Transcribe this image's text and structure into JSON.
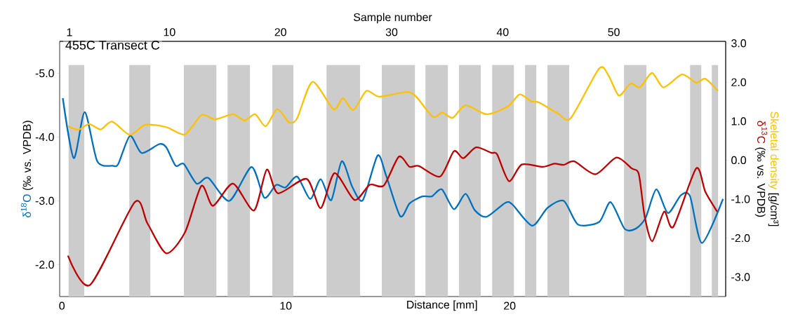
{
  "chart_data": {
    "type": "line",
    "title": "455C Transect C",
    "xlabel": "Distance [mm]",
    "x2label": "Sample number",
    "ylabel": "(‰ vs. VPDB)",
    "y2label": "(‰ vs. VPDB)",
    "annotations": [
      "[g/cm³]"
    ],
    "xlim": [
      -0.1,
      29.65
    ],
    "xticks": [
      0,
      10,
      20
    ],
    "x2lim": [
      0.12,
      60.07
    ],
    "x2ticks": [
      1,
      10,
      20,
      30,
      40,
      50
    ],
    "ylim": [
      -1.5,
      -5.5
    ],
    "yticks": [
      {
        "value": -5,
        "label": "-5.0"
      },
      {
        "value": -4,
        "label": "-4.0"
      },
      {
        "value": -3,
        "label": "-3.0"
      },
      {
        "value": -2,
        "label": "-2.0"
      }
    ],
    "y2lim": [
      -3.5,
      3.05
    ],
    "y2ticks": [
      {
        "value": 3,
        "label": "3.0"
      },
      {
        "value": 2,
        "label": "2.0"
      },
      {
        "value": 1,
        "label": "1.0"
      },
      {
        "value": 0,
        "label": "0.0"
      },
      {
        "value": -1,
        "label": "-1.0"
      },
      {
        "value": -2,
        "label": "-2.0"
      },
      {
        "value": -3,
        "label": "-3.0"
      }
    ],
    "bands": [
      {
        "axis": "x",
        "from": 0.3,
        "to": 1.0,
        "color": "#cccccc"
      },
      {
        "axis": "x",
        "from": 3.01,
        "to": 3.95,
        "color": "#cccccc"
      },
      {
        "axis": "x",
        "from": 5.45,
        "to": 6.9,
        "color": "#cccccc"
      },
      {
        "axis": "x",
        "from": 7.4,
        "to": 8.4,
        "color": "#cccccc"
      },
      {
        "axis": "x",
        "from": 9.4,
        "to": 10.34,
        "color": "#cccccc"
      },
      {
        "axis": "x",
        "from": 11.82,
        "to": 13.32,
        "color": "#cccccc"
      },
      {
        "axis": "x",
        "from": 14.29,
        "to": 15.77,
        "color": "#cccccc"
      },
      {
        "axis": "x",
        "from": 16.24,
        "to": 17.24,
        "color": "#cccccc"
      },
      {
        "axis": "x",
        "from": 17.74,
        "to": 18.71,
        "color": "#cccccc"
      },
      {
        "axis": "x",
        "from": 19.22,
        "to": 20.19,
        "color": "#cccccc"
      },
      {
        "axis": "x",
        "from": 20.69,
        "to": 21.19,
        "color": "#cccccc"
      },
      {
        "axis": "x",
        "from": 21.69,
        "to": 22.66,
        "color": "#cccccc"
      },
      {
        "axis": "x",
        "from": 25.11,
        "to": 26.11,
        "color": "#cccccc"
      },
      {
        "axis": "x",
        "from": 28.06,
        "to": 28.56,
        "color": "#cccccc"
      },
      {
        "axis": "x",
        "from": 29.03,
        "to": 29.31,
        "color": "#cccccc"
      }
    ],
    "series": [
      {
        "name": "δ$^{18}$O",
        "color": "#0070c0",
        "x": [
          0.04,
          0.53,
          1.02,
          1.58,
          2.26,
          2.52,
          3.04,
          3.56,
          4.35,
          4.66,
          5.08,
          5.44,
          6.02,
          6.54,
          7.48,
          8.47,
          9.04,
          9.57,
          9.99,
          10.51,
          11.09,
          11.56,
          12.03,
          12.5,
          12.97,
          13.44,
          14.1,
          14.48,
          15.11,
          15.53,
          16.1,
          16.52,
          16.97,
          17.51,
          18.03,
          18.45,
          18.97,
          19.81,
          20.13,
          21.01,
          21.69,
          22.42,
          23.05,
          24.0,
          24.51,
          25.14,
          25.66,
          26.08,
          26.55,
          27.07,
          27.65,
          28.06,
          28.59,
          29.53
        ],
        "values": [
          -4.61,
          -3.67,
          -4.39,
          -3.62,
          -3.55,
          -3.58,
          -4.02,
          -3.75,
          -3.89,
          -3.84,
          -3.55,
          -3.58,
          -3.27,
          -3.36,
          -3.0,
          -3.53,
          -3.05,
          -3.25,
          -3.21,
          -3.38,
          -3.03,
          -3.34,
          -3.01,
          -3.62,
          -3.22,
          -3.01,
          -3.71,
          -3.4,
          -2.76,
          -2.96,
          -3.07,
          -3.07,
          -3.18,
          -2.87,
          -3.11,
          -2.85,
          -2.75,
          -2.97,
          -2.94,
          -2.61,
          -2.89,
          -3.0,
          -2.63,
          -2.67,
          -2.98,
          -2.56,
          -2.57,
          -2.74,
          -3.18,
          -2.81,
          -3.09,
          -3.07,
          -2.34,
          -3.03
        ]
      },
      {
        "name": "δ$^{13}$C",
        "color": "#c00000",
        "axis": "y2",
        "x": [
          0.27,
          1.26,
          3.25,
          3.82,
          4.66,
          5.5,
          6.23,
          6.75,
          7.64,
          8.58,
          9.15,
          9.65,
          10.93,
          11.56,
          12.18,
          13.07,
          13.75,
          14.38,
          15.05,
          15.53,
          15.95,
          16.89,
          17.51,
          17.93,
          18.5,
          19.18,
          19.44,
          19.97,
          20.54,
          21.48,
          22.0,
          22.42,
          22.89,
          23.83,
          24.77,
          25.45,
          25.77,
          26.03,
          26.37,
          26.9,
          27.31,
          28.33,
          28.74,
          29.27
        ],
        "values": [
          -2.45,
          -3.2,
          -1.08,
          -1.62,
          -2.39,
          -1.85,
          -0.66,
          -1.17,
          -0.6,
          -1.29,
          -0.24,
          -0.85,
          -0.48,
          -1.23,
          -0.33,
          -1.02,
          -0.63,
          -0.65,
          0.09,
          -0.17,
          -0.15,
          -0.42,
          0.23,
          0.05,
          0.33,
          0.19,
          0.15,
          -0.54,
          -0.11,
          -0.17,
          -0.09,
          -0.12,
          -0.03,
          -0.36,
          0.07,
          -0.21,
          -0.36,
          -1.44,
          -2.08,
          -1.32,
          -1.71,
          -0.21,
          -0.81,
          -1.32
        ]
      },
      {
        "name": "Skeletal density",
        "color": "#ffc000",
        "axis": "y2",
        "x": [
          0.27,
          0.74,
          1.21,
          1.73,
          2.24,
          3.04,
          3.72,
          4.66,
          5.5,
          6.23,
          6.85,
          7.64,
          8.16,
          8.63,
          9.1,
          9.62,
          10.15,
          10.51,
          11.19,
          12.13,
          12.55,
          13.02,
          13.6,
          14.17,
          15.42,
          15.84,
          16.57,
          16.99,
          17.46,
          18.03,
          18.97,
          19.92,
          20.45,
          20.96,
          21.32,
          22.16,
          22.73,
          23.99,
          24.41,
          24.88,
          25.4,
          25.82,
          26.36,
          26.87,
          27.7,
          28.33,
          28.74,
          29.3
        ],
        "values": [
          0.87,
          0.78,
          0.93,
          0.79,
          0.99,
          0.65,
          0.91,
          0.85,
          0.66,
          1.16,
          1.05,
          1.18,
          1.02,
          1.18,
          0.87,
          1.31,
          0.97,
          1.08,
          2.01,
          1.31,
          1.59,
          1.29,
          1.78,
          1.63,
          1.75,
          1.62,
          1.11,
          1.22,
          1.09,
          1.41,
          1.18,
          1.38,
          1.69,
          1.51,
          1.48,
          1.2,
          1.08,
          2.35,
          2.18,
          1.66,
          1.97,
          1.87,
          2.24,
          1.87,
          2.2,
          1.99,
          2.09,
          1.78
        ]
      }
    ]
  }
}
